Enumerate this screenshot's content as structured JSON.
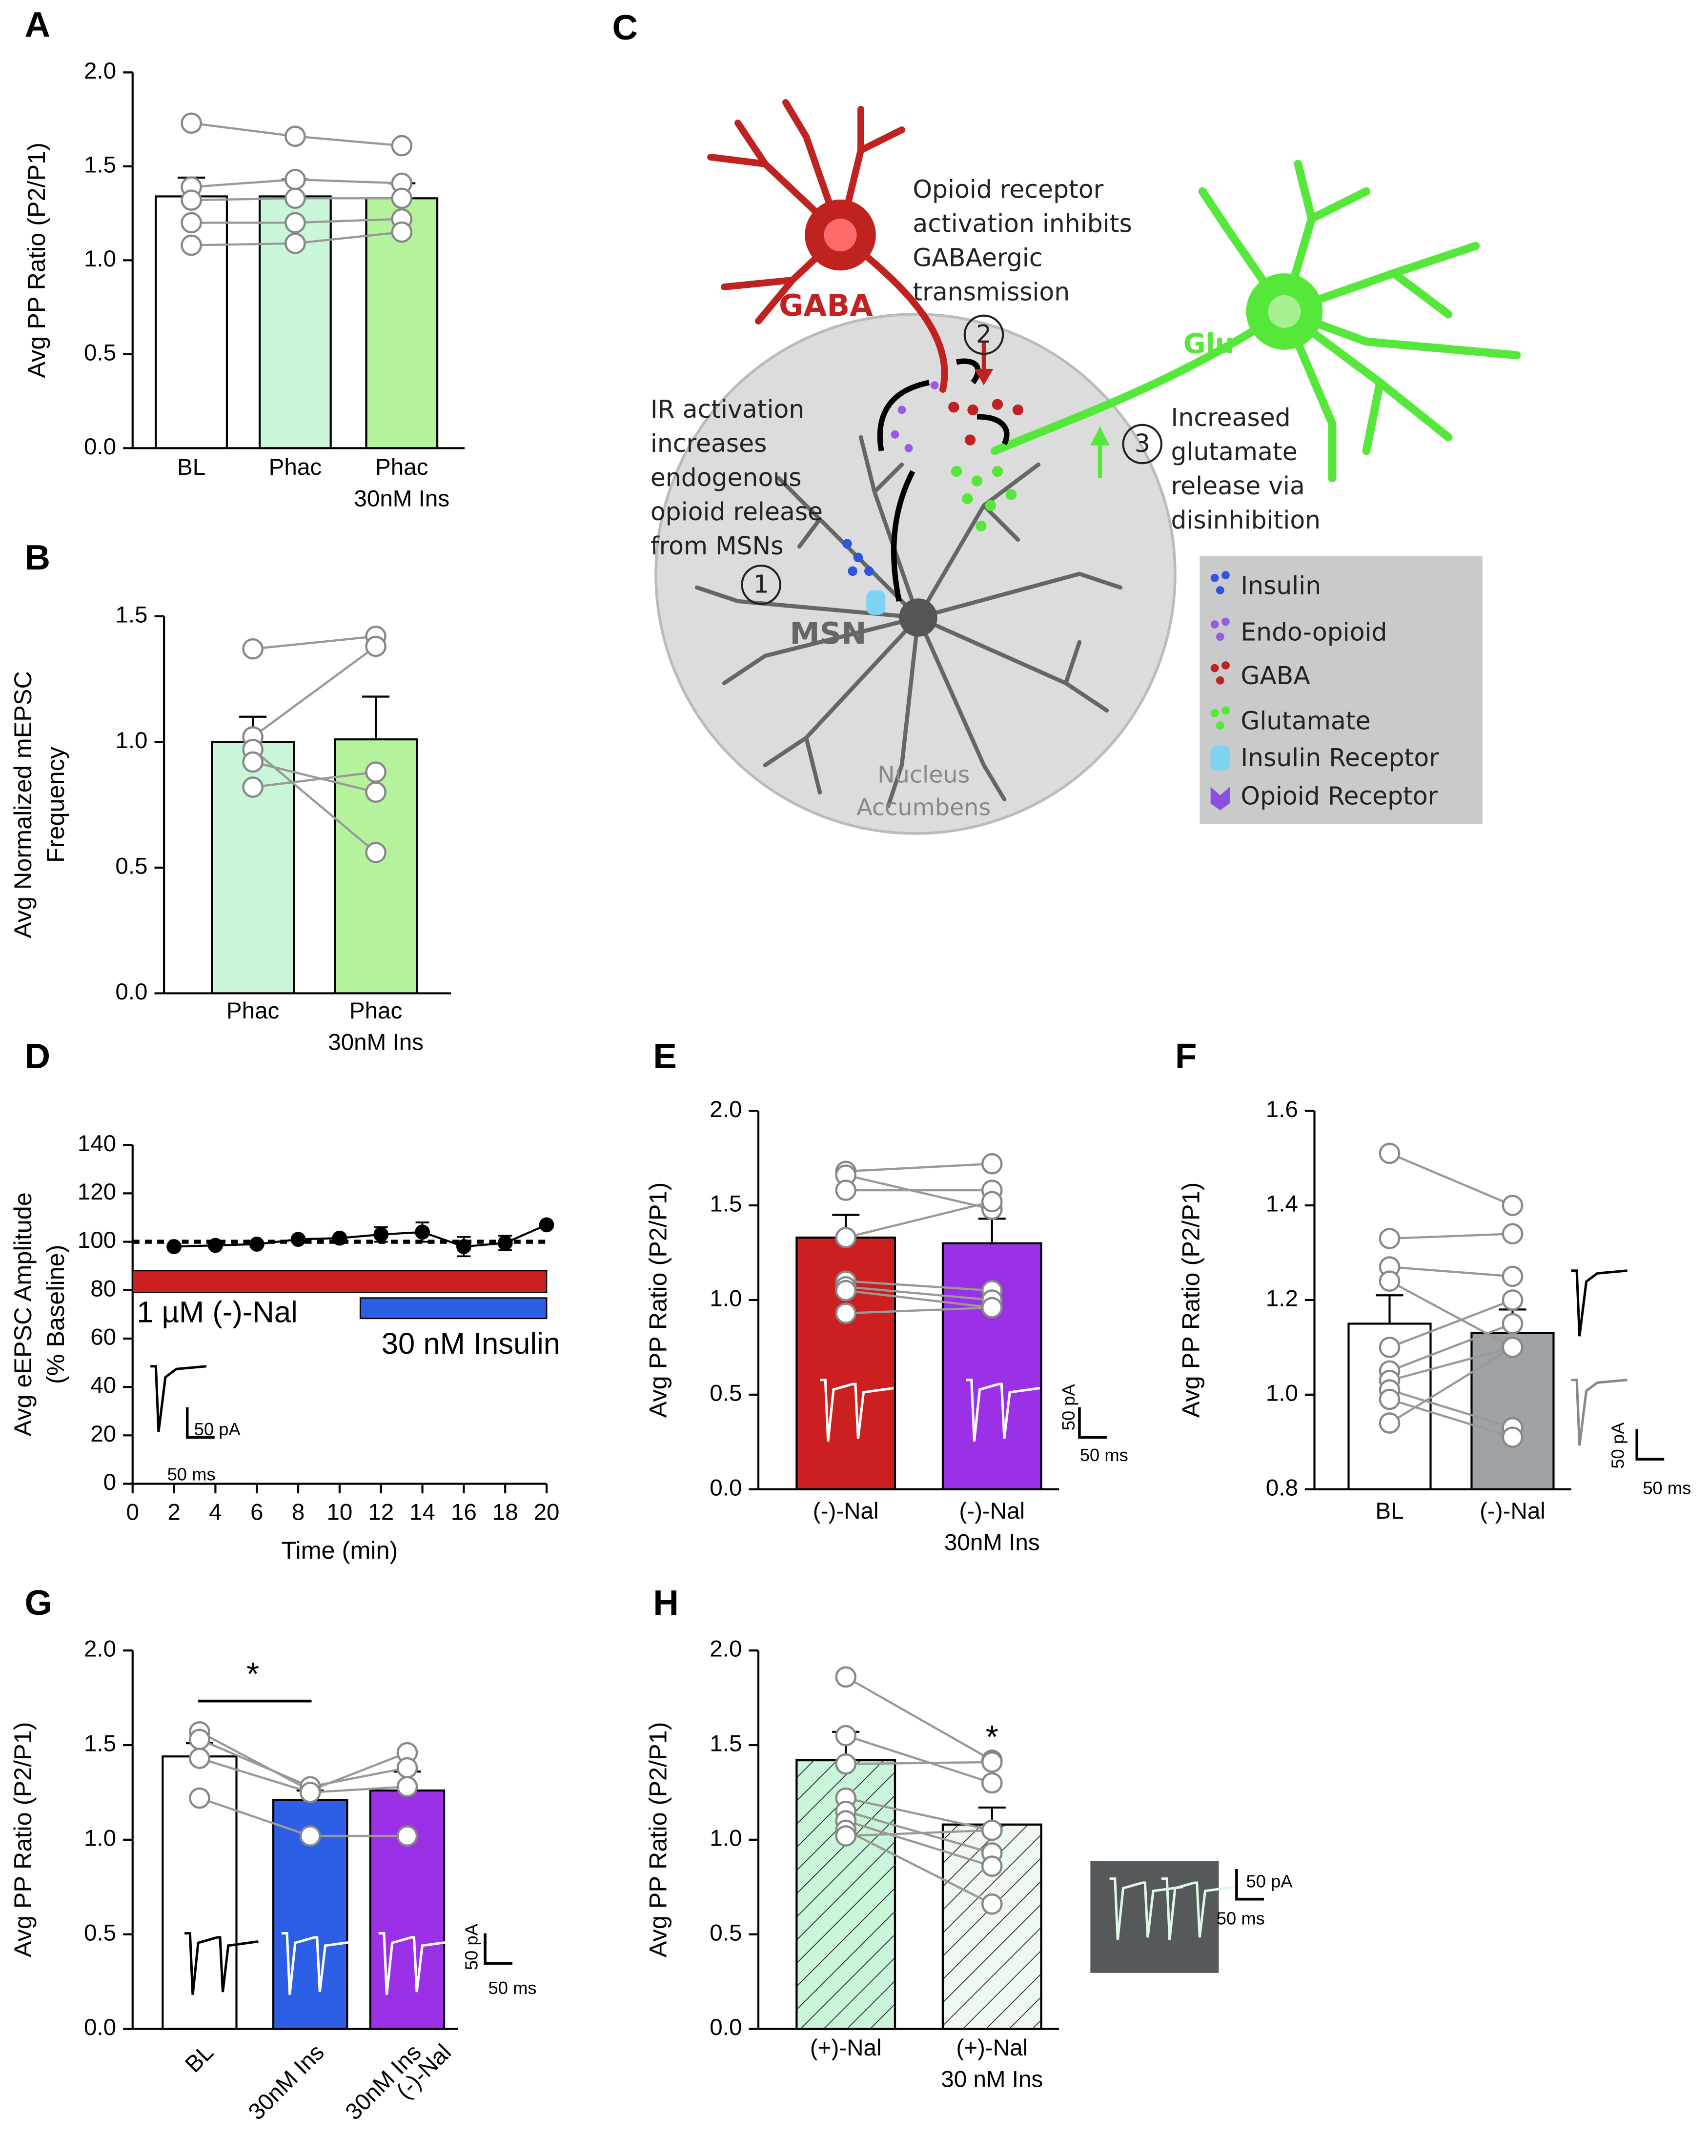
{
  "chart_data": [
    {
      "type": "bar",
      "panel": "A",
      "ylabel": [
        "Avg PP Ratio (P2/P1)"
      ],
      "categories": [
        [
          "BL"
        ],
        [
          "Phac"
        ],
        [
          "Phac",
          "30nM Ins"
        ]
      ],
      "values": [
        1.34,
        1.34,
        1.33
      ],
      "errors": [
        0.1,
        0.09,
        0.08
      ],
      "colors": [
        "#ffffff",
        "#c9f5d9",
        "#b5f29c"
      ],
      "subjects": [
        [
          1.73,
          1.66,
          1.61
        ],
        [
          1.39,
          1.43,
          1.41
        ],
        [
          1.32,
          1.33,
          1.33
        ],
        [
          1.2,
          1.2,
          1.22
        ],
        [
          1.08,
          1.09,
          1.15
        ]
      ],
      "ylim": [
        0,
        2
      ],
      "yticks": [
        {
          "value": 0,
          "label": "0.0"
        },
        {
          "value": 0.5,
          "label": "0.5"
        },
        {
          "value": 1,
          "label": "1.0"
        },
        {
          "value": 1.5,
          "label": "1.5"
        },
        {
          "value": 2,
          "label": "2.0"
        }
      ]
    },
    {
      "type": "bar",
      "panel": "B",
      "ylabel": [
        "Avg Normalized mEPSC",
        "Frequency"
      ],
      "categories": [
        [
          "Phac"
        ],
        [
          "Phac",
          "30nM Ins"
        ]
      ],
      "values": [
        1.0,
        1.01
      ],
      "errors": [
        0.1,
        0.17
      ],
      "colors": [
        "#c9f5d9",
        "#b5f29c"
      ],
      "subjects": [
        [
          1.37,
          1.42
        ],
        [
          1.02,
          1.38
        ],
        [
          0.97,
          0.56
        ],
        [
          0.92,
          0.8
        ],
        [
          0.82,
          0.88
        ]
      ],
      "ylim": [
        0,
        1.5
      ],
      "yticks": [
        {
          "value": 0,
          "label": "0.0"
        },
        {
          "value": 0.5,
          "label": "0.5"
        },
        {
          "value": 1,
          "label": "1.0"
        },
        {
          "value": 1.5,
          "label": "1.5"
        }
      ]
    },
    {
      "type": "line",
      "panel": "D",
      "ylabel": [
        "Avg eEPSC Amplitude",
        "(% Baseline)"
      ],
      "xlabel": "Time (min)",
      "x": [
        2,
        4,
        6,
        8,
        10,
        12,
        14,
        16,
        18,
        20
      ],
      "values": [
        98,
        98.5,
        99,
        101,
        101.5,
        103,
        104,
        98,
        99.5,
        107
      ],
      "errors": [
        1,
        1,
        1,
        1,
        1,
        3,
        4,
        4,
        3,
        1
      ],
      "color": "#000000",
      "reference_line": 100,
      "periods": [
        {
          "label": "1 µM (-)-Nal",
          "start": 0,
          "end": 20,
          "color": "#cc2020"
        },
        {
          "label": "30 nM Insulin",
          "start": 11,
          "end": 20,
          "color": "#2c5fe6"
        }
      ],
      "scale_bar": [
        "50 pA",
        "50 ms"
      ],
      "xlim": [
        0,
        20
      ],
      "xticks": [
        0,
        2,
        4,
        6,
        8,
        10,
        12,
        14,
        16,
        18,
        20
      ],
      "ylim": [
        0,
        140
      ],
      "yticks": [
        0,
        20,
        40,
        60,
        80,
        100,
        120,
        140
      ]
    },
    {
      "type": "bar",
      "panel": "E",
      "ylabel": [
        "Avg PP Ratio (P2/P1)"
      ],
      "categories": [
        [
          "(-)-Nal"
        ],
        [
          "(-)-Nal",
          "30nM Ins"
        ]
      ],
      "values": [
        1.33,
        1.3
      ],
      "errors": [
        0.12,
        0.13
      ],
      "colors": [
        "#cc2020",
        "#9b30e6"
      ],
      "subjects": [
        [
          1.68,
          1.72
        ],
        [
          1.66,
          1.48
        ],
        [
          1.58,
          1.58
        ],
        [
          1.33,
          1.52
        ],
        [
          1.1,
          1.05
        ],
        [
          1.07,
          1.0
        ],
        [
          1.05,
          0.96
        ],
        [
          0.93,
          0.96
        ]
      ],
      "scale_bar": [
        "50 pA",
        "50 ms"
      ],
      "ylim": [
        0,
        2
      ],
      "yticks": [
        {
          "value": 0,
          "label": "0.0"
        },
        {
          "value": 0.5,
          "label": "0.5"
        },
        {
          "value": 1,
          "label": "1.0"
        },
        {
          "value": 1.5,
          "label": "1.5"
        },
        {
          "value": 2,
          "label": "2.0"
        }
      ]
    },
    {
      "type": "bar",
      "panel": "F",
      "ylabel": [
        "Avg PP Ratio (P2/P1)"
      ],
      "categories": [
        [
          "BL"
        ],
        [
          "(-)-Nal"
        ]
      ],
      "values": [
        1.15,
        1.13
      ],
      "errors": [
        0.06,
        0.05
      ],
      "colors": [
        "#ffffff",
        "#9ea2a4"
      ],
      "subjects": [
        [
          1.51,
          1.4
        ],
        [
          1.33,
          1.34
        ],
        [
          1.27,
          1.25
        ],
        [
          1.24,
          1.1
        ],
        [
          1.1,
          1.2
        ],
        [
          1.05,
          1.15
        ],
        [
          1.03,
          1.1
        ],
        [
          1.01,
          0.93
        ],
        [
          0.99,
          0.91
        ],
        [
          0.94,
          1.1
        ]
      ],
      "scale_bar": [
        "50 pA",
        "50 ms"
      ],
      "ylim": [
        0.8,
        1.6
      ],
      "yticks": [
        0.8,
        {
          "value": 1,
          "label": "1.0"
        },
        1.2,
        1.4,
        1.6
      ]
    },
    {
      "type": "bar",
      "panel": "G",
      "ylabel": [
        "Avg PP Ratio (P2/P1)"
      ],
      "categories": [
        [
          "BL"
        ],
        [
          "30nM Ins"
        ],
        [
          "30nM Ins",
          "(-)-Nal"
        ]
      ],
      "values": [
        1.44,
        1.21,
        1.26
      ],
      "errors": [
        0.07,
        0.05,
        0.1
      ],
      "colors": [
        "#ffffff",
        "#2c5fe6",
        "#9b30e6"
      ],
      "subjects": [
        [
          1.57,
          1.26,
          1.46
        ],
        [
          1.53,
          1.28,
          1.38
        ],
        [
          1.43,
          1.25,
          1.28
        ],
        [
          1.22,
          1.02,
          1.02
        ]
      ],
      "annotations": [
        "*"
      ],
      "scale_bar": [
        "50 pA",
        "50 ms"
      ],
      "ylim": [
        0,
        2
      ],
      "yticks": [
        {
          "value": 0,
          "label": "0.0"
        },
        {
          "value": 0.5,
          "label": "0.5"
        },
        {
          "value": 1,
          "label": "1.0"
        },
        {
          "value": 1.5,
          "label": "1.5"
        },
        {
          "value": 2,
          "label": "2.0"
        }
      ]
    },
    {
      "type": "bar",
      "panel": "H",
      "ylabel": [
        "Avg PP Ratio (P2/P1)"
      ],
      "categories": [
        [
          "(+)-Nal"
        ],
        [
          "(+)-Nal",
          "30 nM Ins"
        ]
      ],
      "values": [
        1.42,
        1.08
      ],
      "errors": [
        0.15,
        0.09
      ],
      "colors": [
        "#c9f5d9",
        "#eef8ee"
      ],
      "hatch": true,
      "subjects": [
        [
          1.86,
          1.42
        ],
        [
          1.55,
          1.3
        ],
        [
          1.4,
          1.41
        ],
        [
          1.22,
          1.05
        ],
        [
          1.15,
          0.93
        ],
        [
          1.1,
          0.86
        ],
        [
          1.05,
          0.66
        ],
        [
          1.02,
          1.05
        ]
      ],
      "annotations": [
        "*"
      ],
      "scale_bar": [
        "50 pA",
        "50 ms"
      ],
      "ylim": [
        0,
        2
      ],
      "yticks": [
        {
          "value": 0,
          "label": "0.0"
        },
        {
          "value": 0.5,
          "label": "0.5"
        },
        {
          "value": 1,
          "label": "1.0"
        },
        {
          "value": 1.5,
          "label": "1.5"
        },
        {
          "value": 2,
          "label": "2.0"
        }
      ]
    }
  ],
  "diagram": {
    "panel": "C",
    "gaba": "GABA",
    "glu": "Glu",
    "msn": "MSN",
    "region": [
      "Nucleus",
      "Accumbens"
    ],
    "step1": {
      "number": "1",
      "lines": [
        "IR activation",
        "increases",
        "endogenous",
        "opioid release",
        "from MSNs"
      ]
    },
    "step2": {
      "number": "2",
      "lines": [
        "Opioid receptor",
        "activation inhibits",
        "GABAergic",
        "transmission"
      ]
    },
    "step3": {
      "number": "3",
      "lines": [
        "Increased",
        "glutamate",
        "release via",
        "disinhibition"
      ]
    },
    "legend": [
      "Insulin",
      "Endo-opioid",
      "GABA",
      "Glutamate",
      "Insulin Receptor",
      "Opioid Receptor"
    ]
  }
}
